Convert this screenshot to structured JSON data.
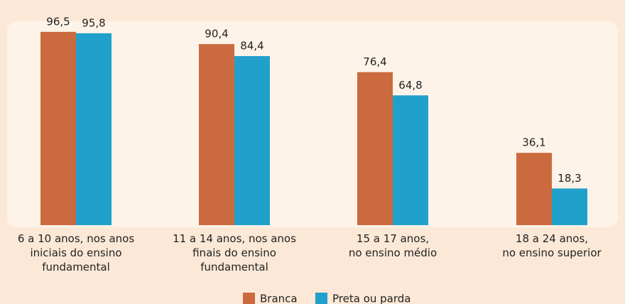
{
  "chart_data": {
    "type": "bar",
    "categories": [
      "6 a 10 anos, nos anos\niniciais do ensino\nfundamental",
      "11 a 14 anos, nos anos\nfinais do ensino\nfundamental",
      "15 a 17 anos,\nno ensino médio",
      "18 a 24 anos,\nno ensino superior"
    ],
    "series": [
      {
        "name": "Branca",
        "color": "#cc6a3f",
        "values": [
          96.5,
          90.4,
          76.4,
          36.1
        ],
        "value_labels": [
          "96,5",
          "90,4",
          "76,4",
          "36,1"
        ]
      },
      {
        "name": "Preta ou parda",
        "color": "#21a0cc",
        "values": [
          95.8,
          84.4,
          64.8,
          18.3
        ],
        "value_labels": [
          "95,8",
          "84,4",
          "64,8",
          "18,3"
        ]
      }
    ]
  }
}
